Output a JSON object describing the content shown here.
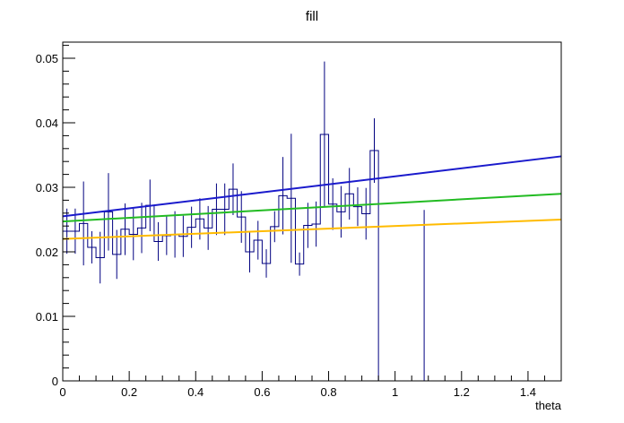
{
  "chart_data": {
    "type": "line",
    "title": "fill",
    "xlabel": "theta",
    "ylabel": "",
    "xlim": [
      0,
      1.5
    ],
    "ylim": [
      0,
      0.0525
    ],
    "grid": false,
    "x_ticks": [
      {
        "value": 0,
        "label": "0"
      },
      {
        "value": 0.2,
        "label": "0.2"
      },
      {
        "value": 0.4,
        "label": "0.4"
      },
      {
        "value": 0.6,
        "label": "0.6"
      },
      {
        "value": 0.8,
        "label": "0.8"
      },
      {
        "value": 1.0,
        "label": "1"
      },
      {
        "value": 1.2,
        "label": "1.2"
      },
      {
        "value": 1.4,
        "label": "1.4"
      }
    ],
    "y_ticks": [
      {
        "value": 0,
        "label": "0"
      },
      {
        "value": 0.01,
        "label": "0.01"
      },
      {
        "value": 0.02,
        "label": "0.02"
      },
      {
        "value": 0.03,
        "label": "0.03"
      },
      {
        "value": 0.04,
        "label": "0.04"
      },
      {
        "value": 0.05,
        "label": "0.05"
      }
    ],
    "histogram": {
      "color": "#000080",
      "bin_width": 0.025,
      "x_start": 0,
      "values": [
        0.0232,
        0.0232,
        0.0244,
        0.0207,
        0.0191,
        0.0262,
        0.0196,
        0.0235,
        0.0227,
        0.0237,
        0.0272,
        0.0216,
        0.0225,
        0.0227,
        0.0224,
        0.0238,
        0.0251,
        0.0237,
        0.0266,
        0.0266,
        0.0297,
        0.0254,
        0.02,
        0.0218,
        0.0182,
        0.0239,
        0.0287,
        0.0283,
        0.0181,
        0.0241,
        0.0243,
        0.0382,
        0.0274,
        0.0262,
        0.029,
        0.027,
        0.0259,
        0.0357,
        0.0
      ],
      "errors": [
        0.0035,
        0.0035,
        0.0065,
        0.0025,
        0.004,
        0.006,
        0.0038,
        0.004,
        0.004,
        0.0039,
        0.004,
        0.003,
        0.003,
        0.0036,
        0.0032,
        0.0032,
        0.0032,
        0.0034,
        0.004,
        0.004,
        0.004,
        0.004,
        0.0032,
        0.003,
        0.0022,
        0.0024,
        0.006,
        0.01,
        0.0018,
        0.0035,
        0.0035,
        0.0113,
        0.004,
        0.004,
        0.004,
        0.003,
        0.004,
        0.005,
        0.0
      ],
      "extra_error_bars": [
        {
          "x": 1.0875,
          "low": 0.0,
          "high": 0.0265
        }
      ]
    },
    "series": [
      {
        "color": "#1a1acc",
        "x": [
          0,
          1.5
        ],
        "y": [
          0.0255,
          0.0348
        ]
      },
      {
        "color": "#22bb22",
        "x": [
          0,
          1.5
        ],
        "y": [
          0.0247,
          0.029
        ]
      },
      {
        "color": "#ffbb00",
        "x": [
          0,
          1.5
        ],
        "y": [
          0.022,
          0.025
        ]
      }
    ]
  }
}
